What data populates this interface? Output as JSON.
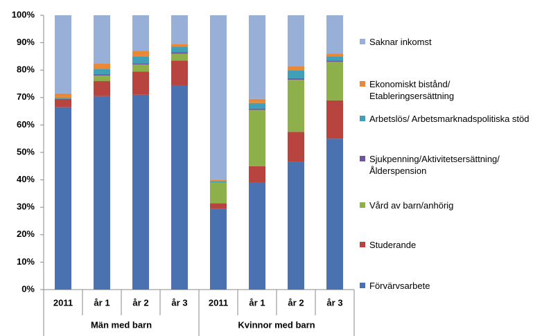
{
  "chart_data": {
    "type": "stacked_bar",
    "categories": [
      "2011",
      "år 1",
      "år 2",
      "år 3",
      "2011",
      "år 1",
      "år 2",
      "år 3"
    ],
    "groups": [
      "Män med barn",
      "Kvinnor med barn"
    ],
    "ylim": [
      0,
      100
    ],
    "yticks": [
      {
        "value": 0,
        "label": "0%"
      },
      {
        "value": 10,
        "label": "10%"
      },
      {
        "value": 20,
        "label": "20%"
      },
      {
        "value": 30,
        "label": "30%"
      },
      {
        "value": 40,
        "label": "40%"
      },
      {
        "value": 50,
        "label": "50%"
      },
      {
        "value": 60,
        "label": "60%"
      },
      {
        "value": 70,
        "label": "70%"
      },
      {
        "value": 80,
        "label": "80%"
      },
      {
        "value": 90,
        "label": "90%"
      },
      {
        "value": 100,
        "label": "100%"
      }
    ],
    "grid": false,
    "legend": "right",
    "series": [
      {
        "name": "Förvärvsarbete",
        "color": "#4a72b0",
        "values": [
          66.5,
          70.5,
          71,
          74.5,
          29.5,
          39,
          46.5,
          55
        ]
      },
      {
        "name": "Studerande",
        "color": "#b84440",
        "values": [
          3,
          5.5,
          8.5,
          9,
          2,
          6,
          11,
          14
        ]
      },
      {
        "name": "Vård av barn/anhörig",
        "color": "#8db04a",
        "values": [
          0,
          2,
          2.5,
          2.5,
          7.5,
          20.5,
          19,
          14
        ]
      },
      {
        "name": "Sjukpenning/Aktivitetsersättning/ Ålderspension",
        "color": "#6e549a",
        "values": [
          0,
          0.5,
          0.5,
          0.5,
          0,
          0.5,
          0.5,
          0.5
        ]
      },
      {
        "name": "Arbetslös/ Arbetsmarknadspolitiska stöd",
        "color": "#3fa0b8",
        "values": [
          0.5,
          2,
          2.5,
          2,
          0.5,
          2,
          3,
          1.5
        ]
      },
      {
        "name": "Ekonomiskt bistånd/ Etableringsersättning",
        "color": "#e8893a",
        "values": [
          1.5,
          2,
          2,
          1,
          0.5,
          1.5,
          1.5,
          1
        ]
      },
      {
        "name": "Saknar inkomst",
        "color": "#98afd8",
        "values": [
          28.5,
          17.5,
          13,
          10.5,
          60,
          30.5,
          18.5,
          14
        ]
      }
    ]
  }
}
